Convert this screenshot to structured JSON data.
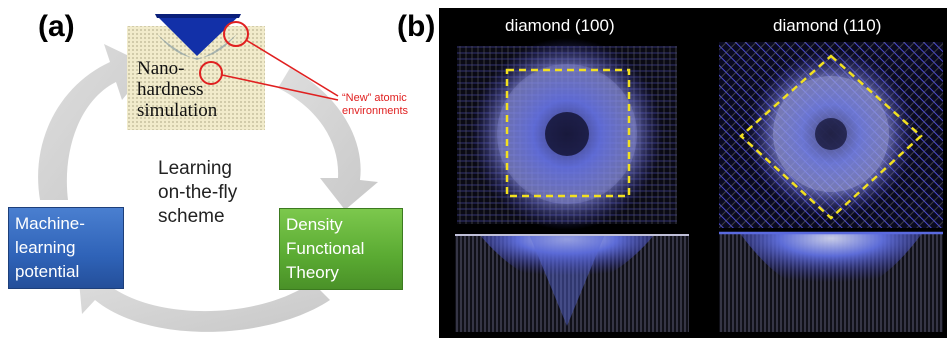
{
  "panel_a": {
    "label": "(a)",
    "simulation_label": [
      "Nano-",
      "hardness",
      "simulation"
    ],
    "annotation": "“New” atomic environments",
    "center_text": [
      "Learning",
      "on-the-fly",
      "scheme"
    ],
    "ml_box": [
      "Machine-",
      "learning",
      "potential"
    ],
    "dft_box": [
      "Density",
      "Functional",
      "Theory"
    ],
    "colors": {
      "ml_box": "#2f63b8",
      "dft_box": "#5aaa32",
      "annotation": "#e02020",
      "cycle_arrows": "#d4d4d4"
    }
  },
  "panel_b": {
    "label": "(b)",
    "left_title": "diamond (100)",
    "right_title": "diamond (110)",
    "colors": {
      "background": "#000000",
      "atoms": "#4040e0",
      "dashed_outline": "#f2e020"
    }
  }
}
